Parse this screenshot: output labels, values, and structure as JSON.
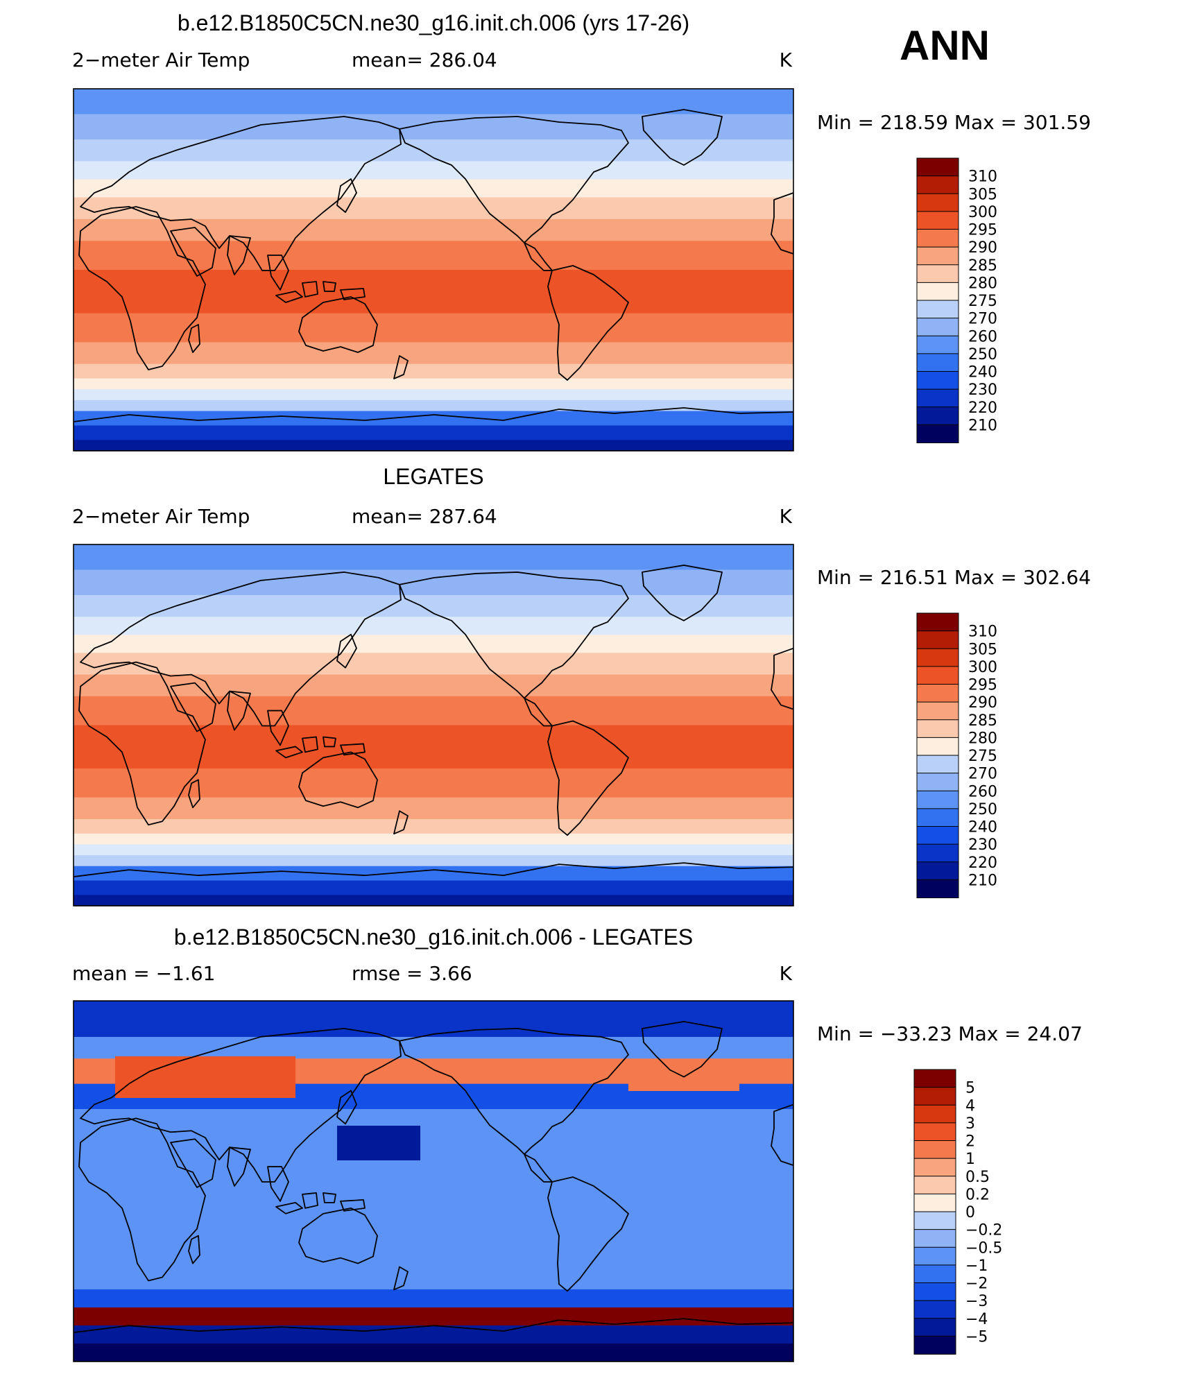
{
  "season": "ANN",
  "colors": {
    "temperature_scale": [
      "#00005e",
      "#001a9a",
      "#0a33c8",
      "#1450e6",
      "#3271f0",
      "#5d93f4",
      "#8fb3f5",
      "#b9d1f8",
      "#dbe9fa",
      "#fdeedf",
      "#fbc9ad",
      "#f8a47e",
      "#f47a4e",
      "#ec5428",
      "#d8380f",
      "#b31d06",
      "#7c0000"
    ],
    "difference_scale": [
      "#00005e",
      "#001a9a",
      "#0a33c8",
      "#1450e6",
      "#3271f0",
      "#5d93f4",
      "#8fb3f5",
      "#b9d1f8",
      "#dbe9fa",
      "#fdeedf",
      "#fbc9ad",
      "#f8a47e",
      "#f47a4e",
      "#ec5428",
      "#d8380f",
      "#b31d06",
      "#7c0000"
    ]
  },
  "panels": [
    {
      "id": "model",
      "title": "b.e12.B1850C5CN.ne30_g16.init.ch.006 (yrs 17-26)",
      "left_label": "2−meter Air Temp",
      "center_label": "mean=  286.04",
      "units": "K",
      "minmax": "Min  =  218.59  Max  =  301.59",
      "scale": "temperature_scale",
      "colorbar_labels": [
        "310",
        "305",
        "300",
        "295",
        "290",
        "285",
        "280",
        "275",
        "270",
        "260",
        "250",
        "240",
        "230",
        "220",
        "210"
      ]
    },
    {
      "id": "obs",
      "title": "LEGATES",
      "left_label": "2−meter Air Temp",
      "center_label": "mean=  287.64",
      "units": "K",
      "minmax": "Min  =  216.51  Max  =  302.64",
      "scale": "temperature_scale",
      "colorbar_labels": [
        "310",
        "305",
        "300",
        "295",
        "290",
        "285",
        "280",
        "275",
        "270",
        "260",
        "250",
        "240",
        "230",
        "220",
        "210"
      ]
    },
    {
      "id": "diff",
      "title": "b.e12.B1850C5CN.ne30_g16.init.ch.006 - LEGATES",
      "left_label": "mean  =    −1.61",
      "center_label": "rmse  =      3.66",
      "units": "K",
      "minmax": "Min  =  −33.23  Max  =    24.07",
      "scale": "difference_scale",
      "colorbar_labels": [
        "5",
        "4",
        "3",
        "2",
        "1",
        "0.5",
        "0.2",
        "0",
        "−0.2",
        "−0.5",
        "−1",
        "−2",
        "−3",
        "−4",
        "−5"
      ]
    }
  ]
}
